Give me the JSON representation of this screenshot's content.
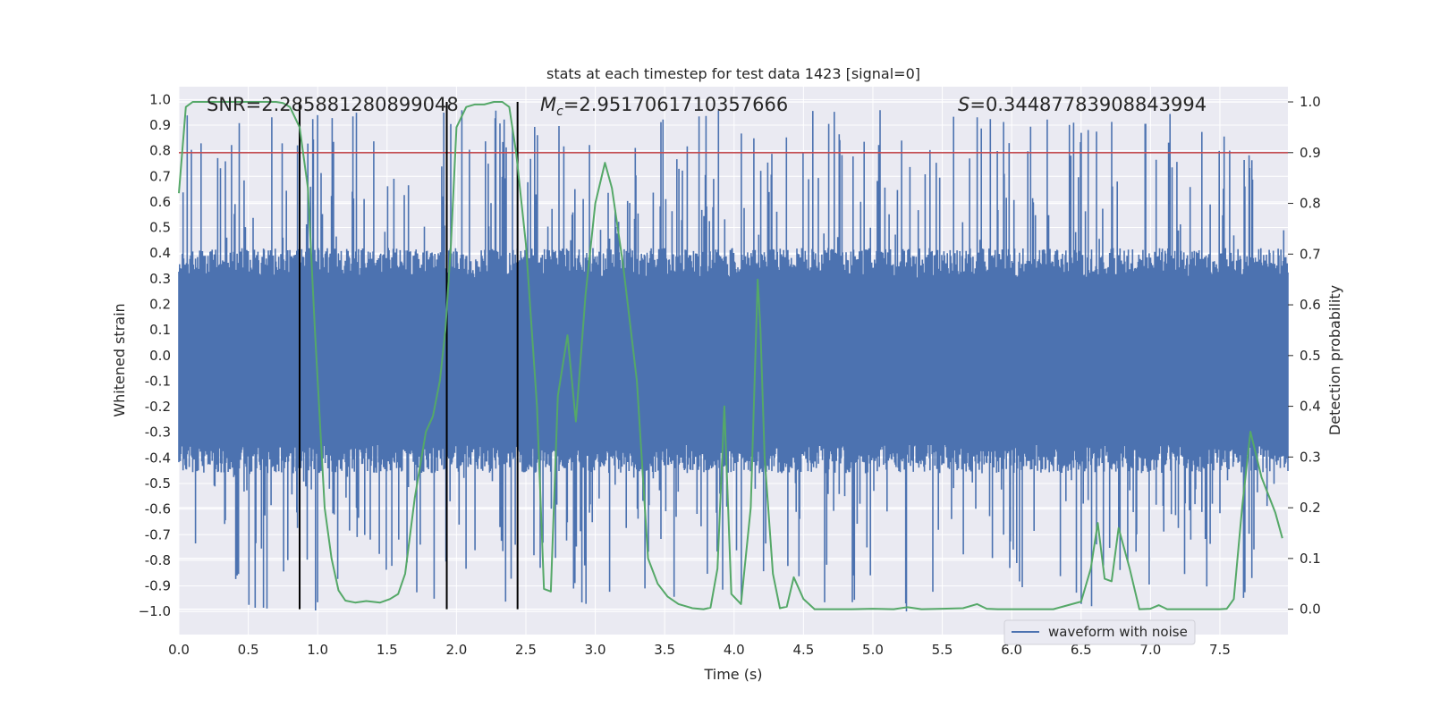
{
  "chart_data": {
    "type": "line",
    "title": "stats at each timestep for test data 1423 [signal=0]",
    "xlabel": "Time (s)",
    "ylabel_left": "Whitened strain",
    "ylabel_right": "Detection probability",
    "xlim": [
      0.0,
      7.99
    ],
    "ylim_left": [
      -1.09,
      1.05
    ],
    "ylim_right": [
      -0.05,
      1.03
    ],
    "x_ticks": [
      "0.0",
      "0.5",
      "1.0",
      "1.5",
      "2.0",
      "2.5",
      "3.0",
      "3.5",
      "4.0",
      "4.5",
      "5.0",
      "5.5",
      "6.0",
      "6.5",
      "7.0",
      "7.5"
    ],
    "y_ticks_left": [
      "1.0",
      "0.9",
      "0.8",
      "0.7",
      "0.6",
      "0.5",
      "0.4",
      "0.3",
      "0.2",
      "0.1",
      "0.0",
      "-0.1",
      "-0.2",
      "-0.3",
      "-0.4",
      "-0.5",
      "-0.6",
      "-0.7",
      "-0.8",
      "-0.9",
      "−1.0"
    ],
    "y_ticks_right": [
      "1.0",
      "0.9",
      "0.8",
      "0.7",
      "0.6",
      "0.5",
      "0.4",
      "0.3",
      "0.2",
      "0.1",
      "0.0"
    ],
    "grid": true,
    "legend": {
      "position": "lower-right",
      "entries": [
        "waveform with noise"
      ]
    },
    "annotations": {
      "snr": "SNR=2.285881280899048",
      "mc_symbol": "M",
      "mc_sub": "c",
      "mc_value": "=2.9517061710357666",
      "s_symbol": "S",
      "s_value": "=0.34487783908843994"
    },
    "threshold_right": 0.9,
    "vertical_lines_x": [
      0.87,
      1.93,
      2.44
    ],
    "colors": {
      "waveform": "#4c72b0",
      "probability": "#55a868",
      "threshold": "#c44e52",
      "vlines": "#000000",
      "axes_bg": "#eaeaf2",
      "grid": "#ffffff"
    },
    "series": [
      {
        "name": "waveform with noise",
        "kind": "noise",
        "envelope_typical": 0.4,
        "peak_max": 0.96,
        "peak_min": -1.0
      },
      {
        "kind": "probability",
        "x": [
          0.0,
          0.05,
          0.1,
          0.15,
          0.2,
          0.3,
          0.4,
          0.5,
          0.6,
          0.7,
          0.75,
          0.8,
          0.87,
          0.93,
          0.98,
          1.05,
          1.1,
          1.15,
          1.2,
          1.27,
          1.35,
          1.45,
          1.52,
          1.58,
          1.63,
          1.7,
          1.78,
          1.83,
          1.88,
          1.92,
          1.96,
          2.0,
          2.07,
          2.13,
          2.2,
          2.27,
          2.33,
          2.38,
          2.43,
          2.5,
          2.58,
          2.63,
          2.68,
          2.73,
          2.8,
          2.86,
          2.93,
          3.0,
          3.07,
          3.12,
          3.2,
          3.3,
          3.38,
          3.45,
          3.52,
          3.6,
          3.7,
          3.78,
          3.83,
          3.88,
          3.93,
          3.98,
          4.05,
          4.12,
          4.17,
          4.19,
          4.22,
          4.28,
          4.33,
          4.38,
          4.43,
          4.5,
          4.58,
          4.7,
          4.85,
          5.0,
          5.15,
          5.25,
          5.35,
          5.5,
          5.65,
          5.75,
          5.82,
          5.9,
          6.1,
          6.3,
          6.5,
          6.57,
          6.62,
          6.67,
          6.72,
          6.77,
          6.85,
          6.92,
          7.0,
          7.06,
          7.12,
          7.2,
          7.3,
          7.4,
          7.5,
          7.55,
          7.6,
          7.66,
          7.72,
          7.8,
          7.9,
          7.95
        ],
        "y": [
          0.82,
          0.99,
          1.0,
          1.0,
          1.0,
          1.0,
          1.0,
          1.0,
          1.0,
          1.0,
          0.998,
          0.99,
          0.95,
          0.83,
          0.55,
          0.2,
          0.1,
          0.037,
          0.017,
          0.013,
          0.016,
          0.013,
          0.02,
          0.03,
          0.07,
          0.22,
          0.35,
          0.38,
          0.45,
          0.55,
          0.72,
          0.95,
          0.99,
          0.995,
          0.995,
          1.0,
          1.0,
          0.99,
          0.9,
          0.72,
          0.4,
          0.04,
          0.035,
          0.42,
          0.54,
          0.37,
          0.62,
          0.8,
          0.88,
          0.83,
          0.68,
          0.45,
          0.1,
          0.05,
          0.025,
          0.01,
          0.002,
          0.0,
          0.003,
          0.08,
          0.4,
          0.03,
          0.01,
          0.2,
          0.65,
          0.55,
          0.3,
          0.07,
          0.002,
          0.005,
          0.063,
          0.02,
          0.0,
          0.0,
          0.0,
          0.001,
          0.0,
          0.004,
          0.0,
          0.001,
          0.002,
          0.01,
          0.001,
          0.0,
          0.0,
          0.0,
          0.015,
          0.08,
          0.17,
          0.06,
          0.055,
          0.16,
          0.08,
          0.0,
          0.001,
          0.008,
          0.0,
          0.0,
          0.0,
          0.0,
          0.0,
          0.001,
          0.02,
          0.2,
          0.35,
          0.26,
          0.19,
          0.14
        ]
      }
    ]
  }
}
